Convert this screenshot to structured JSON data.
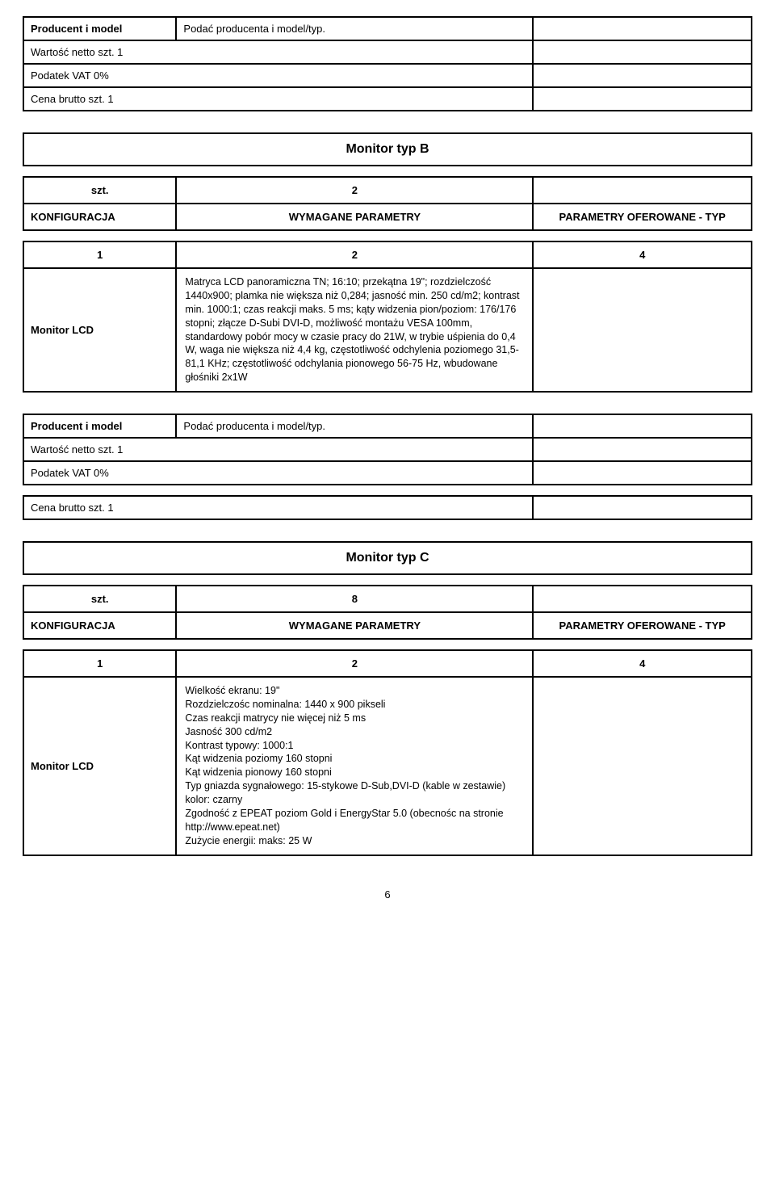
{
  "topBlock": {
    "row1_left": "Producent i model",
    "row1_mid": "Podać producenta i model/typ.",
    "row2_left": "Wartość netto szt. 1",
    "row3_left": "Podatek VAT 0%",
    "row4_left": "Cena brutto szt. 1"
  },
  "monitorB": {
    "title": "Monitor typ B",
    "qty_label": "szt.",
    "qty_value": "2",
    "hdr1": "KONFIGURACJA",
    "hdr2": "WYMAGANE PARAMETRY",
    "hdr3": "PARAMETRY OFEROWANE - TYP",
    "num1": "1",
    "num2": "2",
    "num3": "4",
    "spec_label": "Monitor LCD",
    "spec_text": "Matryca LCD panoramiczna TN; 16:10; przekątna 19\"; rozdzielczość 1440x900; plamka nie większa niż 0,284; jasność min. 250 cd/m2; kontrast  min. 1000:1; czas reakcji maks. 5 ms; kąty widzenia pion/poziom: 176/176 stopni; złącze D-Subi DVI-D, możliwość montażu VESA 100mm, standardowy pobór mocy w czasie pracy do 21W, w trybie uśpienia do 0,4 W, waga nie większa niż 4,4 kg, częstotliwość odchylenia poziomego 31,5- 81,1 KHz; częstotliwość odchylania pionowego 56-75 Hz, wbudowane głośniki 2x1W"
  },
  "midBlock": {
    "row1_left": "Producent i model",
    "row1_mid": "Podać producenta i model/typ.",
    "row2_left": "Wartość netto szt. 1",
    "row3_left": "Podatek VAT 0%",
    "row4_left": "Cena brutto szt. 1"
  },
  "monitorC": {
    "title": "Monitor typ C",
    "qty_label": "szt.",
    "qty_value": "8",
    "hdr1": "KONFIGURACJA",
    "hdr2": "WYMAGANE PARAMETRY",
    "hdr3": "PARAMETRY OFEROWANE - TYP",
    "num1": "1",
    "num2": "2",
    "num3": "4",
    "spec_label": "Monitor LCD",
    "spec_lines": [
      "Wielkość ekranu: 19\"",
      "Rozdzielczośc nominalna: 1440 x 900 pikseli",
      "Czas reakcji matrycy nie więcej niż 5 ms",
      "Jasność 300 cd/m2",
      "Kontrast typowy: 1000:1",
      "Kąt widzenia poziomy 160 stopni",
      "Kąt widzenia pionowy 160 stopni",
      "Typ gniazda sygnałowego: 15-stykowe D-Sub,DVI-D (kable w zestawie)",
      "kolor: czarny",
      "Zgodność z EPEAT poziom Gold i EnergyStar 5.0 (obecnośc na stronie http://www.epeat.net)",
      "Zużycie energii:  maks: 25 W"
    ]
  },
  "page_number": "6"
}
